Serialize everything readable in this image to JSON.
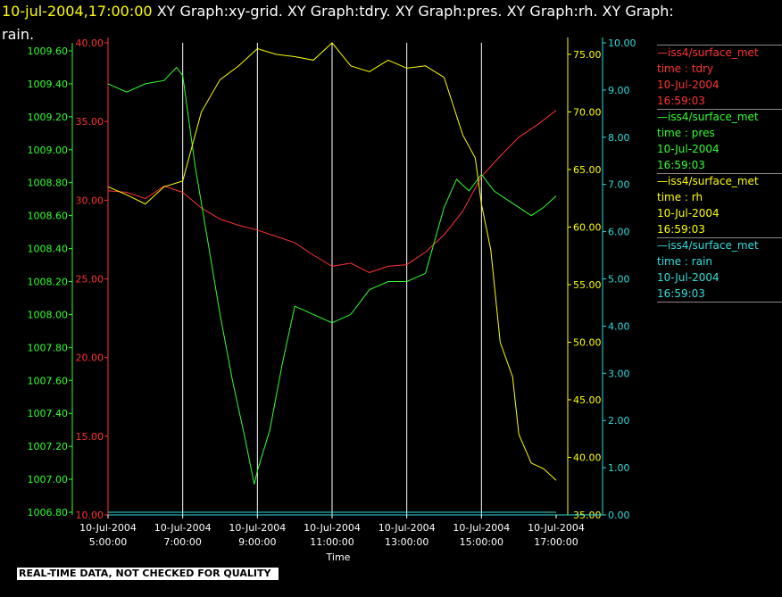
{
  "header": {
    "timestamp": "10-jul-2004,17:00:00",
    "line1_rest": " XY Graph:xy-grid.  XY Graph:tdry.  XY Graph:pres.  XY Graph:rh.  XY Graph:",
    "line2": "rain."
  },
  "quality_notice": "REAL-TIME DATA, NOT CHECKED FOR QUALITY",
  "colors": {
    "tdry": "#ff3333",
    "pres": "#33ff33",
    "rh": "#ffff00",
    "rain": "#33dddd",
    "grid": "#ffffff",
    "axis_text": "#ffffff"
  },
  "legend": [
    {
      "key": "tdry",
      "source": "—iss4/surface_met",
      "label": "time : tdry",
      "date": "10-Jul-2004",
      "time": "16:59:03"
    },
    {
      "key": "pres",
      "source": "—iss4/surface_met",
      "label": "time : pres",
      "date": "10-Jul-2004",
      "time": "16:59:03"
    },
    {
      "key": "rh",
      "source": "—iss4/surface_met",
      "label": "time : rh",
      "date": "10-Jul-2004",
      "time": "16:59:03"
    },
    {
      "key": "rain",
      "source": "—iss4/surface_met",
      "label": "time : rain",
      "date": "10-Jul-2004",
      "time": "16:59:03"
    }
  ],
  "chart_data": {
    "type": "line",
    "xlabel": "Time",
    "x_ticks": [
      {
        "date": "10-Jul-2004",
        "time": "5:00:00"
      },
      {
        "date": "10-Jul-2004",
        "time": "7:00:00"
      },
      {
        "date": "10-Jul-2004",
        "time": "9:00:00"
      },
      {
        "date": "10-Jul-2004",
        "time": "11:00:00"
      },
      {
        "date": "10-Jul-2004",
        "time": "13:00:00"
      },
      {
        "date": "10-Jul-2004",
        "time": "15:00:00"
      },
      {
        "date": "10-Jul-2004",
        "time": "17:00:00"
      }
    ],
    "xlim": [
      "10-Jul-2004 05:00",
      "10-Jul-2004 17:00"
    ],
    "grid": "vertical lines at x ticks",
    "axes": {
      "pres": {
        "min": 1006.8,
        "max": 1009.6,
        "ticks": [
          "1006.80",
          "1007.00",
          "1007.20",
          "1007.40",
          "1007.60",
          "1007.80",
          "1008.00",
          "1008.20",
          "1008.40",
          "1008.60",
          "1008.80",
          "1009.00",
          "1009.20",
          "1009.40",
          "1009.60"
        ]
      },
      "tdry": {
        "min": 10,
        "max": 40,
        "ticks": [
          "10.00",
          "15.00",
          "20.00",
          "25.00",
          "30.00",
          "35.00",
          "40.00"
        ]
      },
      "rh": {
        "min": 35,
        "max": 76,
        "ticks": [
          "35.00",
          "40.00",
          "45.00",
          "50.00",
          "55.00",
          "60.00",
          "65.00",
          "70.00",
          "75.00"
        ]
      },
      "rain": {
        "min": 0,
        "max": 10,
        "ticks": [
          "0.00",
          "1.00",
          "2.00",
          "3.00",
          "4.00",
          "5.00",
          "6.00",
          "7.00",
          "8.00",
          "9.00",
          "10.00"
        ]
      }
    },
    "series": [
      {
        "key": "tdry",
        "x": [
          "05:00",
          "05:30",
          "06:00",
          "06:30",
          "07:00",
          "07:30",
          "08:00",
          "08:30",
          "09:00",
          "09:30",
          "10:00",
          "10:30",
          "11:00",
          "11:30",
          "12:00",
          "12:30",
          "13:00",
          "13:30",
          "14:00",
          "14:30",
          "15:00",
          "15:30",
          "16:00",
          "16:30",
          "17:00"
        ],
        "values": [
          30.6,
          30.5,
          30.1,
          30.9,
          30.5,
          29.5,
          28.8,
          28.4,
          28.1,
          27.7,
          27.3,
          26.5,
          25.8,
          26.0,
          25.4,
          25.8,
          25.9,
          26.7,
          27.8,
          29.3,
          31.5,
          32.8,
          34.0,
          34.8,
          35.7
        ]
      },
      {
        "key": "pres",
        "x": [
          "05:00",
          "05:30",
          "06:00",
          "06:30",
          "06:50",
          "07:00",
          "07:20",
          "07:40",
          "08:00",
          "08:20",
          "08:40",
          "08:55",
          "09:00",
          "09:20",
          "09:40",
          "10:00",
          "10:30",
          "11:00",
          "11:30",
          "12:00",
          "12:30",
          "13:00",
          "13:30",
          "14:00",
          "14:20",
          "14:40",
          "15:00",
          "15:20",
          "15:40",
          "16:00",
          "16:20",
          "16:40",
          "17:00"
        ],
        "values": [
          1009.4,
          1009.35,
          1009.4,
          1009.42,
          1009.5,
          1009.45,
          1008.9,
          1008.45,
          1008.0,
          1007.6,
          1007.25,
          1006.97,
          1007.05,
          1007.3,
          1007.7,
          1008.05,
          1008.0,
          1007.95,
          1008.0,
          1008.15,
          1008.2,
          1008.2,
          1008.25,
          1008.65,
          1008.82,
          1008.75,
          1008.85,
          1008.75,
          1008.7,
          1008.65,
          1008.6,
          1008.65,
          1008.72
        ]
      },
      {
        "key": "rh",
        "x": [
          "05:00",
          "05:30",
          "06:00",
          "06:30",
          "07:00",
          "07:15",
          "07:30",
          "08:00",
          "08:30",
          "09:00",
          "09:30",
          "10:00",
          "10:30",
          "11:00",
          "11:30",
          "12:00",
          "12:30",
          "13:00",
          "13:30",
          "14:00",
          "14:30",
          "14:50",
          "15:00",
          "15:15",
          "15:30",
          "15:50",
          "16:00",
          "16:20",
          "16:40",
          "17:00"
        ],
        "values": [
          63.5,
          62.8,
          62.0,
          63.5,
          64.0,
          67.0,
          70.0,
          72.8,
          74.0,
          75.5,
          75.0,
          74.8,
          74.5,
          76.0,
          74.0,
          73.5,
          74.5,
          73.8,
          74.0,
          73.0,
          68.0,
          66.0,
          62.0,
          58.0,
          50.0,
          47.0,
          42.0,
          39.5,
          39.0,
          38.0
        ]
      },
      {
        "key": "rain",
        "x": [
          "05:00",
          "17:00"
        ],
        "values": [
          0,
          0
        ]
      }
    ]
  }
}
